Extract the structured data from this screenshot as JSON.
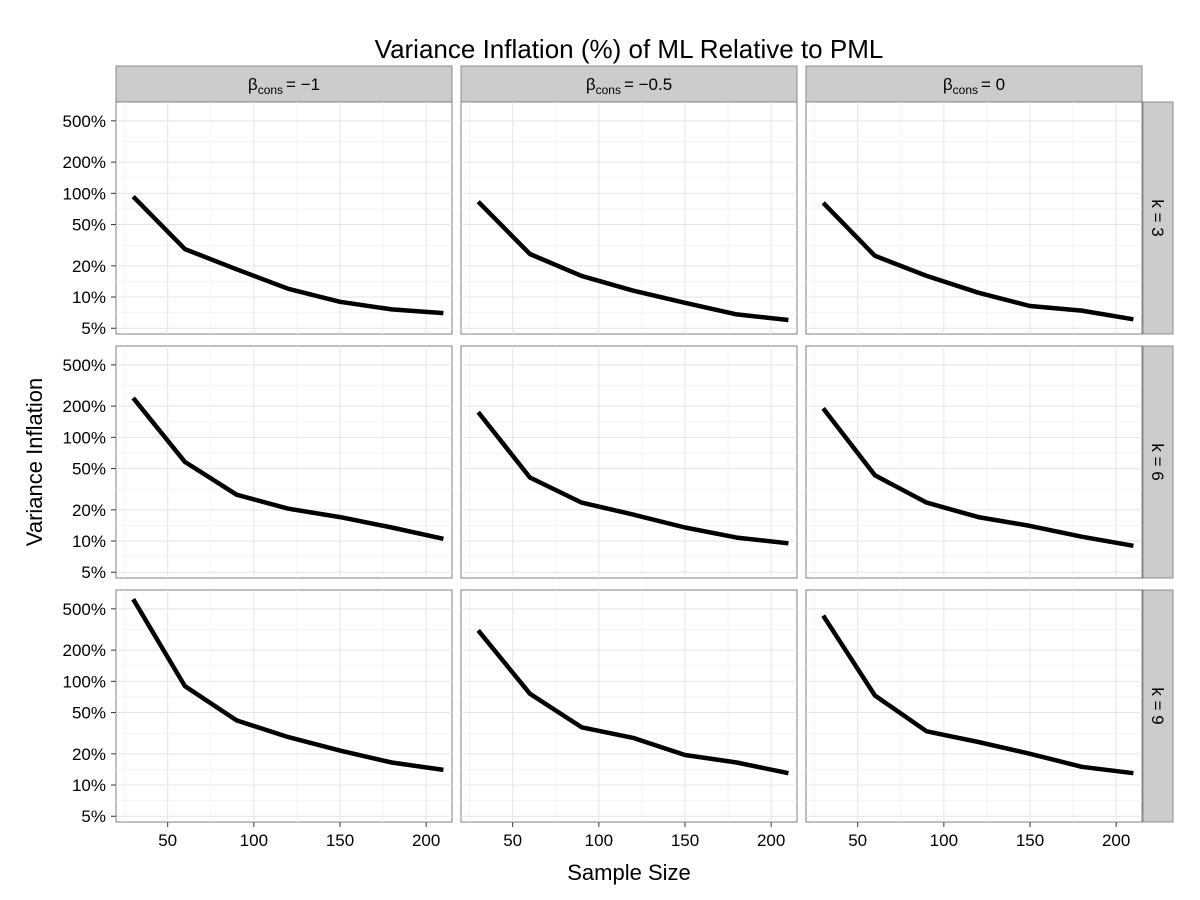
{
  "chart_data": {
    "type": "line",
    "title": "Variance Inflation (%) of ML Relative to PML",
    "xlabel": "Sample Size",
    "ylabel": "Variance Inflation",
    "x_scale": "linear",
    "y_scale": "log",
    "xlim": [
      20,
      215
    ],
    "ylim": [
      4.4,
      760
    ],
    "x_ticks": [
      50,
      100,
      150,
      200
    ],
    "x_tick_labels": [
      "50",
      "100",
      "150",
      "200"
    ],
    "y_ticks": [
      5,
      10,
      20,
      50,
      100,
      200,
      500
    ],
    "y_tick_labels": [
      "5%",
      "10%",
      "20%",
      "50%",
      "100%",
      "200%",
      "500%"
    ],
    "grid": true,
    "facet_columns": [
      {
        "symbol": "β",
        "subscript": "cons",
        "value": "= −1"
      },
      {
        "symbol": "β",
        "subscript": "cons",
        "value": "= −0.5"
      },
      {
        "symbol": "β",
        "subscript": "cons",
        "value": "= 0"
      }
    ],
    "facet_rows": [
      "k = 3",
      "k = 6",
      "k = 9"
    ],
    "x": [
      30,
      60,
      90,
      120,
      150,
      180,
      210
    ],
    "panels": [
      {
        "row": 0,
        "col": 0,
        "values": [
          93,
          29,
          18.5,
          12,
          9,
          7.6,
          7
        ]
      },
      {
        "row": 0,
        "col": 1,
        "values": [
          83,
          26,
          16,
          11.5,
          8.8,
          6.8,
          6
        ]
      },
      {
        "row": 0,
        "col": 2,
        "values": [
          81,
          25,
          16,
          11,
          8.2,
          7.4,
          6.1
        ]
      },
      {
        "row": 1,
        "col": 0,
        "values": [
          240,
          58,
          28,
          20.5,
          17,
          13.5,
          10.5
        ]
      },
      {
        "row": 1,
        "col": 1,
        "values": [
          175,
          41,
          23.5,
          18,
          13.5,
          10.8,
          9.5
        ]
      },
      {
        "row": 1,
        "col": 2,
        "values": [
          190,
          43,
          23.5,
          17,
          14,
          11,
          9
        ]
      },
      {
        "row": 2,
        "col": 0,
        "values": [
          620,
          90,
          42,
          29,
          21.5,
          16.5,
          14
        ]
      },
      {
        "row": 2,
        "col": 1,
        "values": [
          310,
          76,
          36,
          28.5,
          19.5,
          16.5,
          13
        ]
      },
      {
        "row": 2,
        "col": 2,
        "values": [
          430,
          73,
          33,
          26,
          20,
          15,
          13
        ]
      }
    ]
  }
}
